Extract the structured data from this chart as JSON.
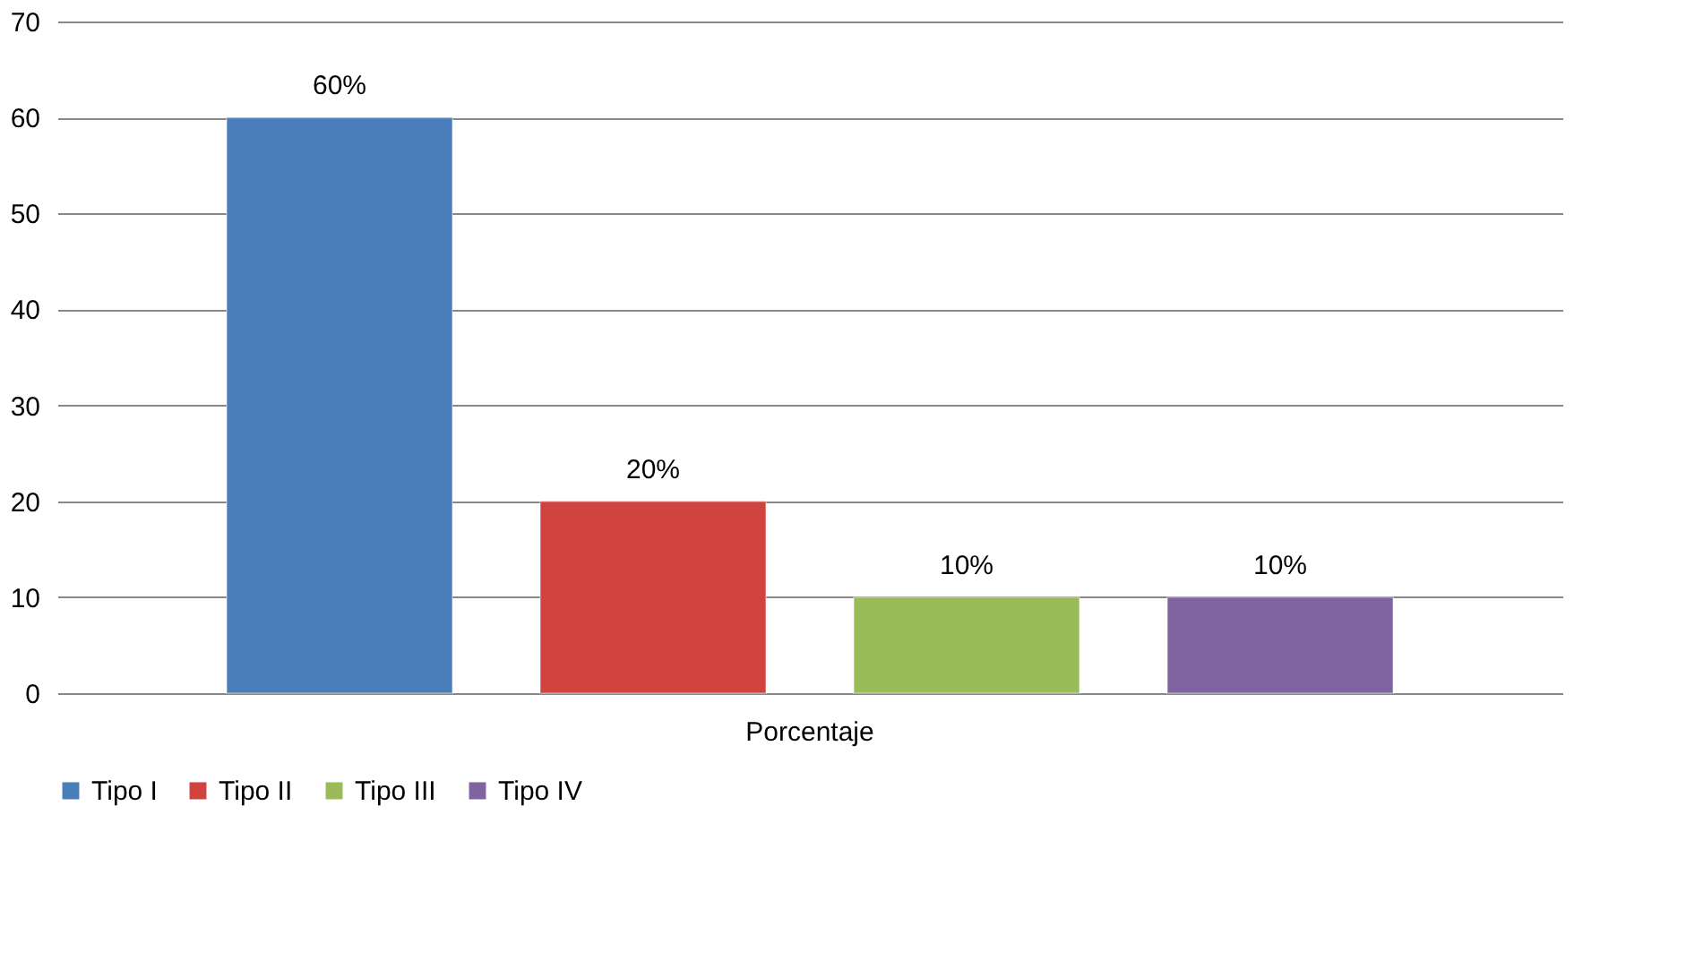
{
  "chart_data": {
    "type": "bar",
    "categories": [
      "Porcentaje"
    ],
    "series": [
      {
        "name": "Tipo I",
        "color": "#4a7ebb",
        "values": [
          60
        ],
        "value_labels": [
          "60%"
        ]
      },
      {
        "name": "Tipo II",
        "color": "#d0433f",
        "values": [
          20
        ],
        "value_labels": [
          "20%"
        ]
      },
      {
        "name": "Tipo III",
        "color": "#9bbb59",
        "values": [
          10
        ],
        "value_labels": [
          "10%"
        ]
      },
      {
        "name": "Tipo IV",
        "color": "#8064a2",
        "values": [
          10
        ],
        "value_labels": [
          "10%"
        ]
      }
    ],
    "ylim": [
      0,
      70
    ],
    "yticks": [
      0,
      10,
      20,
      30,
      40,
      50,
      60,
      70
    ],
    "grid": "y",
    "legend": "bottom"
  }
}
